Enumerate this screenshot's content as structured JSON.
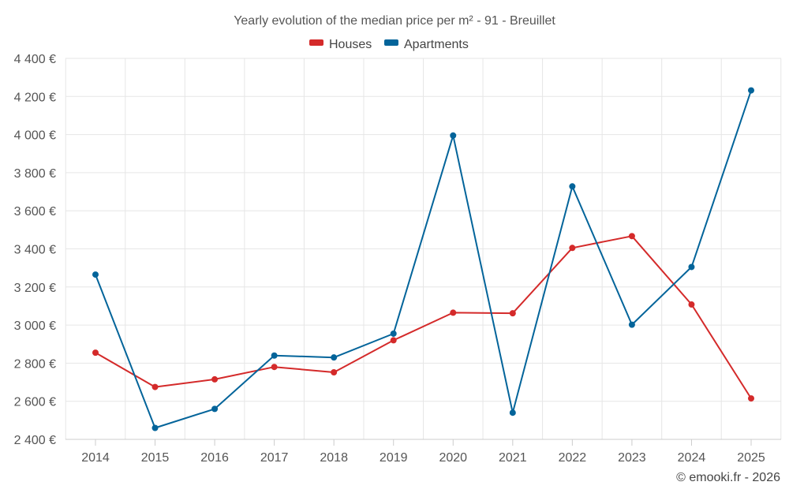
{
  "chart_data": {
    "type": "line",
    "title": "Yearly evolution of the median price per m² - 91 - Breuillet",
    "categories": [
      "2014",
      "2015",
      "2016",
      "2017",
      "2018",
      "2019",
      "2020",
      "2021",
      "2022",
      "2023",
      "2024",
      "2025"
    ],
    "series": [
      {
        "name": "Houses",
        "color": "#d42a2a",
        "values": [
          2855,
          2675,
          2715,
          2780,
          2752,
          2920,
          3065,
          3062,
          3405,
          3467,
          3108,
          2615
        ]
      },
      {
        "name": "Apartments",
        "color": "#03649a",
        "values": [
          3265,
          2460,
          2560,
          2840,
          2830,
          2955,
          3995,
          2540,
          3728,
          3002,
          3305,
          4232
        ]
      }
    ],
    "ylim": [
      2400,
      4400
    ],
    "yticks": [
      2400,
      2600,
      2800,
      3000,
      3200,
      3400,
      3600,
      3800,
      4000,
      4200,
      4400
    ],
    "ytick_labels": [
      "2 400 €",
      "2 600 €",
      "2 800 €",
      "3 000 €",
      "3 200 €",
      "3 400 €",
      "3 600 €",
      "3 800 €",
      "4 000 €",
      "4 200 €",
      "4 400 €"
    ],
    "xlabel": "",
    "ylabel": "",
    "grid": true,
    "legend_position": "top-center"
  },
  "credit": "© emooki.fr - 2026"
}
